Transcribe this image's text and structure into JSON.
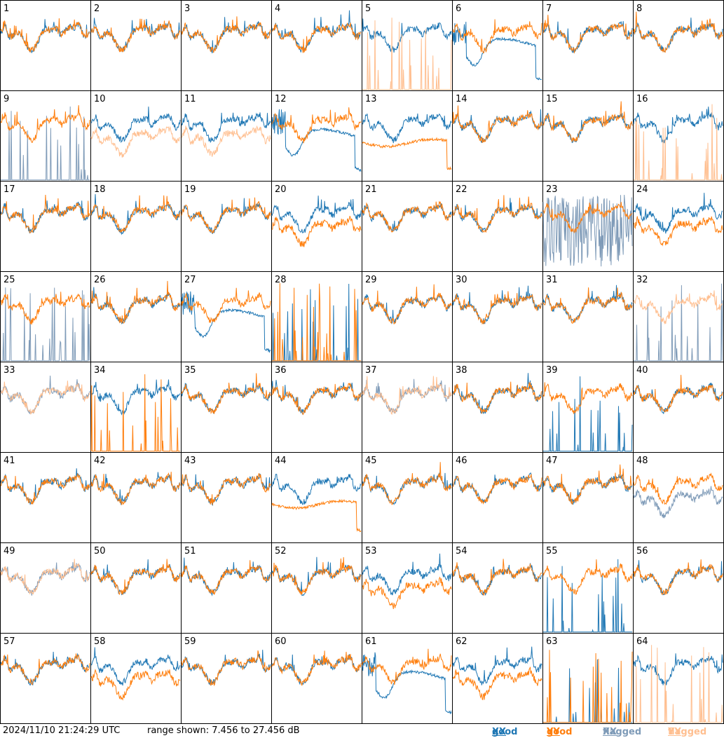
{
  "footer": {
    "timestamp": "2024/11/10 21:24:29 UTC",
    "range_text": "range shown: 7.456 to 27.456 dB"
  },
  "legend": {
    "good_xx": {
      "word": "good",
      "pol": "XX",
      "color": "#1f77b4"
    },
    "good_yy": {
      "word": "good",
      "pol": "YY",
      "color": "#ff7f0e"
    },
    "flagged_xx": {
      "word": "flagged",
      "pol": "XX",
      "color": "#7f9bb8"
    },
    "flagged_yy": {
      "word": "flagged",
      "pol": "YY",
      "color": "#ffbf90"
    }
  },
  "chart_data": {
    "type": "line",
    "layout": "8x8 small multiples, one panel per tile",
    "ylim_db": [
      7.456,
      27.456
    ],
    "axes_ticks": "none",
    "series": [
      "XX",
      "YY"
    ],
    "panels": [
      {
        "id": 1,
        "xx": "good",
        "yy": "good",
        "xx_shape": "normal",
        "yy_shape": "normal"
      },
      {
        "id": 2,
        "xx": "good",
        "yy": "good",
        "xx_shape": "normal",
        "yy_shape": "normal"
      },
      {
        "id": 3,
        "xx": "good",
        "yy": "good",
        "xx_shape": "normal",
        "yy_shape": "normal"
      },
      {
        "id": 4,
        "xx": "good",
        "yy": "good",
        "xx_shape": "normal",
        "yy_shape": "normal"
      },
      {
        "id": 5,
        "xx": "good",
        "yy": "flagged",
        "xx_shape": "normal",
        "yy_shape": "spikes"
      },
      {
        "id": 6,
        "xx": "good",
        "yy": "good",
        "xx_shape": "dip",
        "yy_shape": "normal"
      },
      {
        "id": 7,
        "xx": "good",
        "yy": "good",
        "xx_shape": "normal",
        "yy_shape": "normal"
      },
      {
        "id": 8,
        "xx": "good",
        "yy": "good",
        "xx_shape": "normal",
        "yy_shape": "normal"
      },
      {
        "id": 9,
        "xx": "flagged",
        "yy": "good",
        "xx_shape": "spikes",
        "yy_shape": "normal"
      },
      {
        "id": 10,
        "xx": "good",
        "yy": "flagged",
        "xx_shape": "normal",
        "yy_shape": "low"
      },
      {
        "id": 11,
        "xx": "good",
        "yy": "flagged",
        "xx_shape": "normal",
        "yy_shape": "low"
      },
      {
        "id": 12,
        "xx": "good",
        "yy": "good",
        "xx_shape": "dip",
        "yy_shape": "normal"
      },
      {
        "id": 13,
        "xx": "good",
        "yy": "good",
        "xx_shape": "normal",
        "yy_shape": "flat"
      },
      {
        "id": 14,
        "xx": "good",
        "yy": "good",
        "xx_shape": "normal",
        "yy_shape": "normal"
      },
      {
        "id": 15,
        "xx": "good",
        "yy": "good",
        "xx_shape": "normal",
        "yy_shape": "normal"
      },
      {
        "id": 16,
        "xx": "good",
        "yy": "flagged",
        "xx_shape": "normal",
        "yy_shape": "spikes"
      },
      {
        "id": 17,
        "xx": "good",
        "yy": "good",
        "xx_shape": "normal",
        "yy_shape": "normal"
      },
      {
        "id": 18,
        "xx": "good",
        "yy": "good",
        "xx_shape": "normal",
        "yy_shape": "normal"
      },
      {
        "id": 19,
        "xx": "good",
        "yy": "good",
        "xx_shape": "normal",
        "yy_shape": "normal"
      },
      {
        "id": 20,
        "xx": "good",
        "yy": "good",
        "xx_shape": "normal",
        "yy_shape": "low"
      },
      {
        "id": 21,
        "xx": "good",
        "yy": "good",
        "xx_shape": "normal",
        "yy_shape": "normal"
      },
      {
        "id": 22,
        "xx": "good",
        "yy": "good",
        "xx_shape": "normal",
        "yy_shape": "normal"
      },
      {
        "id": 23,
        "xx": "flagged",
        "yy": "good",
        "xx_shape": "noise",
        "yy_shape": "normal"
      },
      {
        "id": 24,
        "xx": "good",
        "yy": "good",
        "xx_shape": "normal",
        "yy_shape": "low"
      },
      {
        "id": 25,
        "xx": "flagged",
        "yy": "good",
        "xx_shape": "spikes",
        "yy_shape": "normal"
      },
      {
        "id": 26,
        "xx": "good",
        "yy": "good",
        "xx_shape": "normal",
        "yy_shape": "normal"
      },
      {
        "id": 27,
        "xx": "good",
        "yy": "good",
        "xx_shape": "dip",
        "yy_shape": "normal"
      },
      {
        "id": 28,
        "xx": "good",
        "yy": "good",
        "xx_shape": "spikes",
        "yy_shape": "spikes"
      },
      {
        "id": 29,
        "xx": "good",
        "yy": "good",
        "xx_shape": "normal",
        "yy_shape": "normal"
      },
      {
        "id": 30,
        "xx": "good",
        "yy": "good",
        "xx_shape": "normal",
        "yy_shape": "normal"
      },
      {
        "id": 31,
        "xx": "good",
        "yy": "good",
        "xx_shape": "normal",
        "yy_shape": "normal"
      },
      {
        "id": 32,
        "xx": "flagged",
        "yy": "flagged",
        "xx_shape": "spikes",
        "yy_shape": "normal"
      },
      {
        "id": 33,
        "xx": "flagged",
        "yy": "flagged",
        "xx_shape": "normal",
        "yy_shape": "normal"
      },
      {
        "id": 34,
        "xx": "good",
        "yy": "good",
        "xx_shape": "normal",
        "yy_shape": "spikes"
      },
      {
        "id": 35,
        "xx": "good",
        "yy": "good",
        "xx_shape": "normal",
        "yy_shape": "normal"
      },
      {
        "id": 36,
        "xx": "good",
        "yy": "good",
        "xx_shape": "normal",
        "yy_shape": "normal"
      },
      {
        "id": 37,
        "xx": "flagged",
        "yy": "flagged",
        "xx_shape": "normal",
        "yy_shape": "normal"
      },
      {
        "id": 38,
        "xx": "good",
        "yy": "good",
        "xx_shape": "normal",
        "yy_shape": "normal"
      },
      {
        "id": 39,
        "xx": "good",
        "yy": "good",
        "xx_shape": "spikes",
        "yy_shape": "normal"
      },
      {
        "id": 40,
        "xx": "good",
        "yy": "good",
        "xx_shape": "normal",
        "yy_shape": "normal"
      },
      {
        "id": 41,
        "xx": "good",
        "yy": "good",
        "xx_shape": "normal",
        "yy_shape": "normal"
      },
      {
        "id": 42,
        "xx": "good",
        "yy": "good",
        "xx_shape": "normal",
        "yy_shape": "normal"
      },
      {
        "id": 43,
        "xx": "good",
        "yy": "good",
        "xx_shape": "normal",
        "yy_shape": "normal"
      },
      {
        "id": 44,
        "xx": "good",
        "yy": "good",
        "xx_shape": "normal",
        "yy_shape": "flat"
      },
      {
        "id": 45,
        "xx": "good",
        "yy": "good",
        "xx_shape": "normal",
        "yy_shape": "normal"
      },
      {
        "id": 46,
        "xx": "good",
        "yy": "good",
        "xx_shape": "normal",
        "yy_shape": "normal"
      },
      {
        "id": 47,
        "xx": "good",
        "yy": "good",
        "xx_shape": "normal",
        "yy_shape": "normal"
      },
      {
        "id": 48,
        "xx": "flagged",
        "yy": "good",
        "xx_shape": "low",
        "yy_shape": "normal"
      },
      {
        "id": 49,
        "xx": "flagged",
        "yy": "flagged",
        "xx_shape": "normal",
        "yy_shape": "normal"
      },
      {
        "id": 50,
        "xx": "good",
        "yy": "good",
        "xx_shape": "normal",
        "yy_shape": "normal"
      },
      {
        "id": 51,
        "xx": "good",
        "yy": "good",
        "xx_shape": "normal",
        "yy_shape": "normal"
      },
      {
        "id": 52,
        "xx": "good",
        "yy": "good",
        "xx_shape": "normal",
        "yy_shape": "normal"
      },
      {
        "id": 53,
        "xx": "good",
        "yy": "good",
        "xx_shape": "normal",
        "yy_shape": "low"
      },
      {
        "id": 54,
        "xx": "good",
        "yy": "good",
        "xx_shape": "normal",
        "yy_shape": "normal"
      },
      {
        "id": 55,
        "xx": "good",
        "yy": "good",
        "xx_shape": "spikes",
        "yy_shape": "normal"
      },
      {
        "id": 56,
        "xx": "good",
        "yy": "good",
        "xx_shape": "normal",
        "yy_shape": "normal"
      },
      {
        "id": 57,
        "xx": "good",
        "yy": "good",
        "xx_shape": "normal",
        "yy_shape": "normal"
      },
      {
        "id": 58,
        "xx": "good",
        "yy": "good",
        "xx_shape": "normal",
        "yy_shape": "low"
      },
      {
        "id": 59,
        "xx": "good",
        "yy": "good",
        "xx_shape": "normal",
        "yy_shape": "normal"
      },
      {
        "id": 60,
        "xx": "good",
        "yy": "good",
        "xx_shape": "normal",
        "yy_shape": "normal"
      },
      {
        "id": 61,
        "xx": "good",
        "yy": "good",
        "xx_shape": "dip",
        "yy_shape": "normal"
      },
      {
        "id": 62,
        "xx": "good",
        "yy": "good",
        "xx_shape": "normal",
        "yy_shape": "low"
      },
      {
        "id": 63,
        "xx": "good",
        "yy": "good",
        "xx_shape": "spikes",
        "yy_shape": "spikes"
      },
      {
        "id": 64,
        "xx": "good",
        "yy": "flagged",
        "xx_shape": "normal",
        "yy_shape": "spikes"
      }
    ]
  }
}
